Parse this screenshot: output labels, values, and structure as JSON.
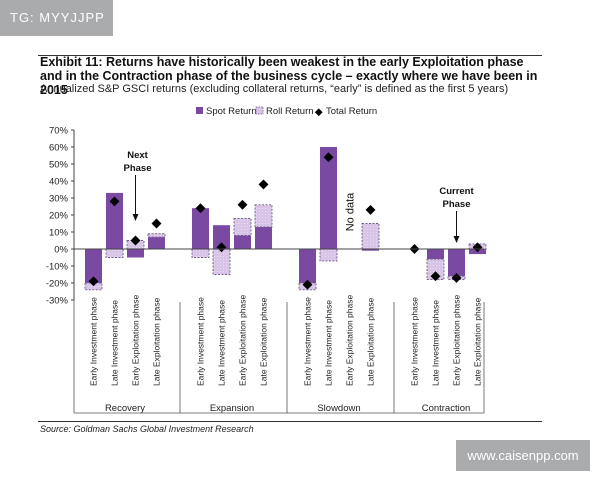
{
  "tag": "TG: MYYJJPP",
  "watermark": "www.caisenpp.com",
  "source": "Source: Goldman Sachs Global Investment Research",
  "chart_data": {
    "type": "bar",
    "title": "Exhibit 11: Returns have historically been weakest in the early Exploitation phase and in the Contraction phase of the business cycle – exactly where we have been in 2015",
    "subtitle": "Annualized S&P GSCI returns (excluding collateral returns, “early” is defined as the first 5 years)",
    "ylim": [
      -30,
      70
    ],
    "yticks": [
      "70%",
      "60%",
      "50%",
      "40%",
      "30%",
      "20%",
      "10%",
      "0%",
      "-10%",
      "-20%",
      "-30%"
    ],
    "legend": [
      "Spot Return",
      "Roll Return",
      "Total Return"
    ],
    "legend_position": "top",
    "groups": [
      {
        "name": "Recovery",
        "phases": [
          {
            "label": "Early Investment phase",
            "spot": -20,
            "roll": -4,
            "total": -19
          },
          {
            "label": "Late Investment phase",
            "spot": 33,
            "roll": -5,
            "total": 28
          },
          {
            "label": "Early Exploitation phase",
            "spot": -5,
            "roll": 5,
            "total": 5
          },
          {
            "label": "Late Exploitation phase",
            "spot": 7,
            "roll": 2,
            "total": 15
          }
        ]
      },
      {
        "name": "Expansion",
        "phases": [
          {
            "label": "Early Investment phase",
            "spot": 24,
            "roll": -5,
            "total": 24
          },
          {
            "label": "Late Investment phase",
            "spot": 14,
            "roll": -15,
            "total": 1
          },
          {
            "label": "Early Exploitation phase",
            "spot": 8,
            "roll": 10,
            "total": 26
          },
          {
            "label": "Late Exploitation phase",
            "spot": 13,
            "roll": 13,
            "total": 38
          }
        ]
      },
      {
        "name": "Slowdown",
        "phases": [
          {
            "label": "Early Investment phase",
            "spot": -20,
            "roll": -4,
            "total": -21
          },
          {
            "label": "Late Investment phase",
            "spot": 60,
            "roll": -7,
            "total": 54
          },
          {
            "label": "Early Exploitation phase",
            "spot": null,
            "roll": null,
            "total": null
          },
          {
            "label": "Late Exploitation phase",
            "spot": -1,
            "roll": 15,
            "total": 23
          }
        ]
      },
      {
        "name": "Contraction",
        "phases": [
          {
            "label": "Early Investment phase",
            "spot": 0,
            "roll": 0,
            "total": 0
          },
          {
            "label": "Late Investment phase",
            "spot": -6,
            "roll": -12,
            "total": -16
          },
          {
            "label": "Early Exploitation phase",
            "spot": -16,
            "roll": -2,
            "total": -17
          },
          {
            "label": "Late Exploitation phase",
            "spot": -3,
            "roll": 3,
            "total": 1
          }
        ]
      }
    ],
    "annotations": {
      "next_phase": "Next Phase",
      "current_phase": "Current Phase",
      "no_data": "No data"
    },
    "colors": {
      "spot": "#7a4aa3",
      "roll": "#d7c4e6",
      "total": "#000000",
      "roll_edge": "#6f5a86"
    }
  }
}
